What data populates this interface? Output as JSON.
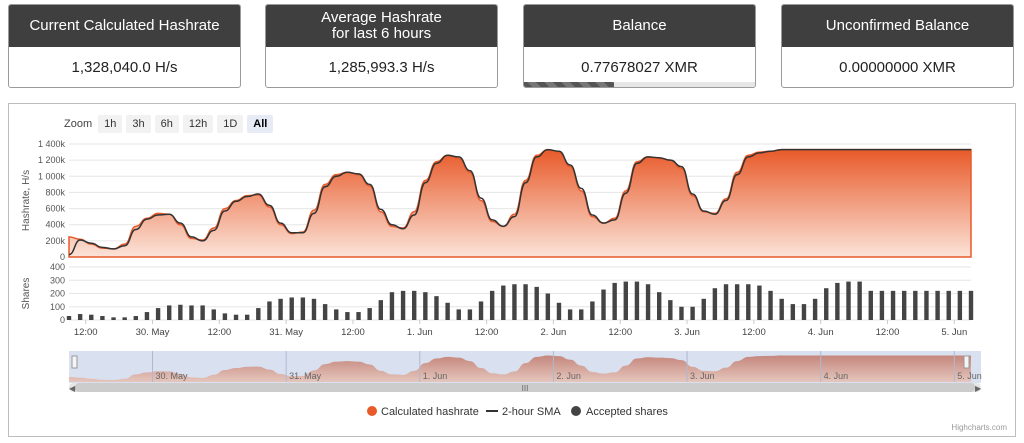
{
  "cards": [
    {
      "title": "Current Calculated Hashrate",
      "title2": "",
      "value": "1,328,040.0 H/s"
    },
    {
      "title": "Average Hashrate",
      "title2": "for last 6 hours",
      "value": "1,285,993.3 H/s"
    },
    {
      "title": "Balance",
      "title2": "",
      "value": "0.77678027 XMR",
      "progress": 0.39
    },
    {
      "title": "Unconfirmed Balance",
      "title2": "",
      "value": "0.00000000 XMR"
    }
  ],
  "zoom": {
    "label": "Zoom",
    "buttons": [
      "1h",
      "3h",
      "6h",
      "12h",
      "1D",
      "All"
    ],
    "active": "All"
  },
  "credit": "Highcharts.com",
  "colors": {
    "hashrate": "#e85a2a",
    "sma": "#333333",
    "shares": "#444444",
    "navigator": "#c9d3ea"
  },
  "chart_data": {
    "type": "area",
    "x_unit": "hours since first data point",
    "x_ticks": [
      {
        "label": "12:00",
        "x": 3
      },
      {
        "label": "30. May",
        "x": 15
      },
      {
        "label": "12:00",
        "x": 27
      },
      {
        "label": "31. May",
        "x": 39
      },
      {
        "label": "12:00",
        "x": 51
      },
      {
        "label": "1. Jun",
        "x": 63
      },
      {
        "label": "12:00",
        "x": 75
      },
      {
        "label": "2. Jun",
        "x": 87
      },
      {
        "label": "12:00",
        "x": 99
      },
      {
        "label": "3. Jun",
        "x": 111
      },
      {
        "label": "12:00",
        "x": 123
      },
      {
        "label": "4. Jun",
        "x": 135
      },
      {
        "label": "12:00",
        "x": 147
      },
      {
        "label": "5. Jun",
        "x": 159
      }
    ],
    "navigator_labels": [
      "30. May",
      "31. May",
      "1. Jun",
      "2. Jun",
      "3. Jun",
      "4. Jun",
      "5. Jun"
    ],
    "hashrate_axis": {
      "label": "Hashrate, H/s",
      "ticks": [
        "0",
        "200k",
        "400k",
        "600k",
        "800k",
        "1 000k",
        "1 200k",
        "1 400k"
      ],
      "min": 0,
      "max": 1400000
    },
    "shares_axis": {
      "label": "Shares",
      "ticks": [
        "0",
        "100",
        "200",
        "300",
        "400"
      ],
      "min": 0,
      "max": 400
    },
    "series": [
      {
        "name": "Calculated hashrate",
        "x": [
          0,
          2,
          4,
          6,
          8,
          10,
          12,
          14,
          16,
          18,
          20,
          22,
          24,
          26,
          28,
          30,
          32,
          34,
          36,
          38,
          40,
          42,
          44,
          46,
          48,
          50,
          52,
          54,
          56,
          58,
          60,
          62,
          64,
          66,
          68,
          70,
          72,
          74,
          76,
          78,
          80,
          82,
          84,
          86,
          88,
          90,
          92,
          94,
          96,
          98,
          100,
          102,
          104,
          106,
          108,
          110,
          112,
          114,
          116,
          118,
          120,
          122,
          124,
          126,
          128,
          130,
          132,
          134,
          136,
          138,
          140,
          142,
          144,
          146,
          148,
          150,
          152,
          154,
          156,
          158,
          160,
          162
        ],
        "values": [
          250000,
          220000,
          160000,
          110000,
          100000,
          160000,
          380000,
          480000,
          540000,
          530000,
          400000,
          230000,
          210000,
          360000,
          600000,
          700000,
          760000,
          770000,
          620000,
          400000,
          290000,
          310000,
          580000,
          900000,
          1020000,
          1050000,
          1020000,
          880000,
          560000,
          380000,
          360000,
          560000,
          950000,
          1180000,
          1260000,
          1220000,
          1050000,
          700000,
          440000,
          380000,
          530000,
          950000,
          1260000,
          1330000,
          1300000,
          1120000,
          820000,
          500000,
          420000,
          480000,
          820000,
          1180000,
          1240000,
          1220000,
          1200000,
          1100000,
          760000,
          560000,
          540000,
          720000,
          1050000,
          1260000,
          1300000,
          1310000,
          1330000,
          1330000,
          1330000,
          1330000,
          1330000,
          1330000,
          1330000,
          1330000,
          1330000,
          1330000,
          1330000,
          1330000,
          1330000,
          1330000,
          1330000,
          1330000,
          1330000,
          1330000
        ]
      },
      {
        "name": "2-hour SMA",
        "x": [
          0,
          2,
          4,
          6,
          8,
          10,
          12,
          14,
          16,
          18,
          20,
          22,
          24,
          26,
          28,
          30,
          32,
          34,
          36,
          38,
          40,
          42,
          44,
          46,
          48,
          50,
          52,
          54,
          56,
          58,
          60,
          62,
          64,
          66,
          68,
          70,
          72,
          74,
          76,
          78,
          80,
          82,
          84,
          86,
          88,
          90,
          92,
          94,
          96,
          98,
          100,
          102,
          104,
          106,
          108,
          110,
          112,
          114,
          116,
          118,
          120,
          122,
          124,
          126,
          128,
          130,
          132,
          134,
          136,
          138,
          140,
          142,
          144,
          146,
          148,
          150,
          152,
          154,
          156,
          158,
          160,
          162
        ],
        "values": [
          30000,
          210000,
          170000,
          120000,
          100000,
          140000,
          340000,
          470000,
          520000,
          530000,
          420000,
          250000,
          200000,
          330000,
          570000,
          690000,
          750000,
          780000,
          640000,
          420000,
          300000,
          300000,
          540000,
          870000,
          1000000,
          1050000,
          1030000,
          900000,
          590000,
          400000,
          350000,
          520000,
          920000,
          1160000,
          1260000,
          1240000,
          1070000,
          730000,
          460000,
          380000,
          500000,
          920000,
          1240000,
          1330000,
          1310000,
          1140000,
          850000,
          520000,
          420000,
          460000,
          790000,
          1160000,
          1240000,
          1230000,
          1200000,
          1120000,
          780000,
          570000,
          530000,
          700000,
          1020000,
          1240000,
          1290000,
          1310000,
          1330000,
          1330000,
          1330000,
          1330000,
          1330000,
          1330000,
          1330000,
          1330000,
          1330000,
          1330000,
          1330000,
          1330000,
          1330000,
          1330000,
          1330000,
          1330000,
          1330000,
          1330000
        ]
      },
      {
        "name": "Accepted shares",
        "x": [
          0,
          2,
          4,
          6,
          8,
          10,
          12,
          14,
          16,
          18,
          20,
          22,
          24,
          26,
          28,
          30,
          32,
          34,
          36,
          38,
          40,
          42,
          44,
          46,
          48,
          50,
          52,
          54,
          56,
          58,
          60,
          62,
          64,
          66,
          68,
          70,
          72,
          74,
          76,
          78,
          80,
          82,
          84,
          86,
          88,
          90,
          92,
          94,
          96,
          98,
          100,
          102,
          104,
          106,
          108,
          110,
          112,
          114,
          116,
          118,
          120,
          122,
          124,
          126,
          128,
          130,
          132,
          134,
          136,
          138,
          140,
          142,
          144,
          146,
          148,
          150,
          152,
          154,
          156,
          158,
          160,
          162
        ],
        "values": [
          30,
          45,
          40,
          30,
          20,
          20,
          30,
          60,
          90,
          110,
          115,
          110,
          110,
          80,
          50,
          40,
          40,
          90,
          140,
          160,
          170,
          170,
          160,
          120,
          80,
          60,
          60,
          90,
          150,
          210,
          220,
          220,
          210,
          180,
          130,
          80,
          80,
          140,
          220,
          260,
          270,
          270,
          250,
          200,
          130,
          80,
          80,
          140,
          230,
          280,
          290,
          290,
          270,
          210,
          150,
          100,
          100,
          160,
          240,
          270,
          270,
          270,
          260,
          220,
          160,
          120,
          120,
          160,
          240,
          280,
          290,
          290,
          220,
          220,
          220,
          220,
          220,
          220,
          220,
          220,
          220,
          220
        ]
      }
    ]
  }
}
